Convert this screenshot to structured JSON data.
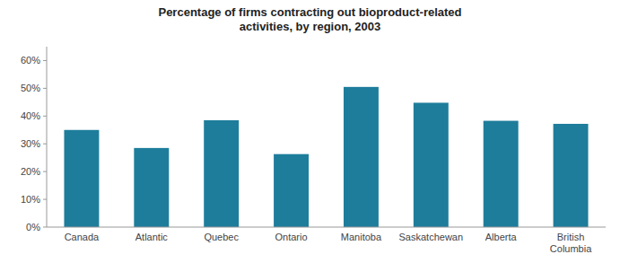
{
  "chart_data": {
    "type": "bar",
    "title": "Percentage of firms contracting out bioproduct-related\nactivities, by region, 2003",
    "categories": [
      "Canada",
      "Atlantic",
      "Quebec",
      "Ontario",
      "Manitoba",
      "Saskatchewan",
      "Alberta",
      "British\nColumbia"
    ],
    "values": [
      0.35,
      0.285,
      0.385,
      0.263,
      0.505,
      0.448,
      0.383,
      0.372
    ],
    "color": "#1e7d9b",
    "ylim": [
      0,
      0.65
    ],
    "yticks": [
      {
        "value": 0.0,
        "label": "0%"
      },
      {
        "value": 0.1,
        "label": "10%"
      },
      {
        "value": 0.2,
        "label": "20%"
      },
      {
        "value": 0.3,
        "label": "30%"
      },
      {
        "value": 0.4,
        "label": "40%"
      },
      {
        "value": 0.5,
        "label": "50%"
      },
      {
        "value": 0.6,
        "label": "60%"
      }
    ],
    "grid": false
  }
}
